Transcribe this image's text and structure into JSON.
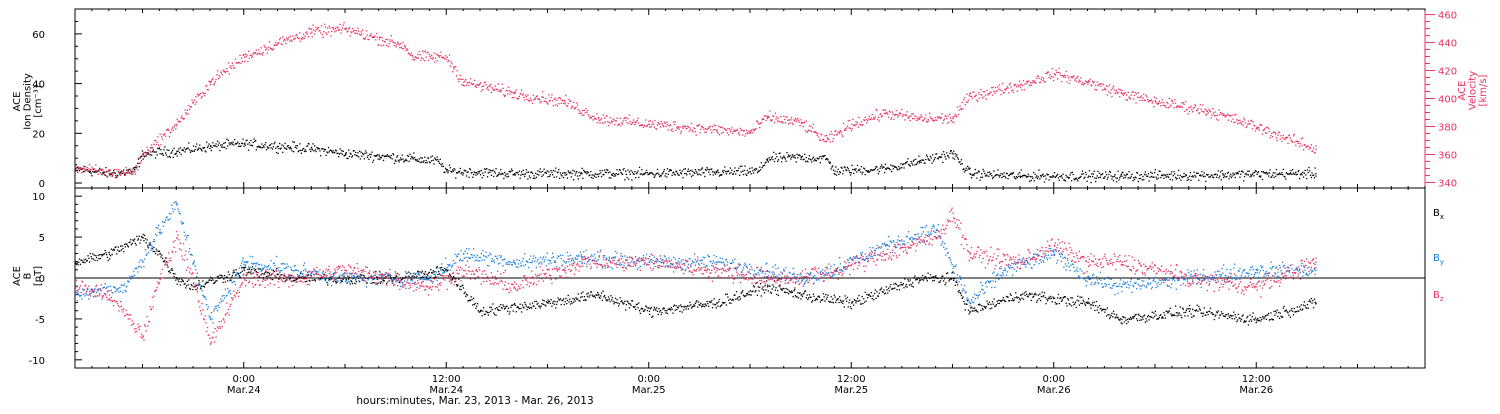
{
  "colors": {
    "black": "#000000",
    "red": "#e8315f",
    "blue": "#1a7fe0"
  },
  "time_axis": {
    "start": "2013-03-23 14:00",
    "end": "2013-03-26 22:00",
    "major_ticks": [
      {
        "time": "2013-03-24 00:00",
        "label": "0:00",
        "sub": "Mar.24"
      },
      {
        "time": "2013-03-24 12:00",
        "label": "12:00",
        "sub": "Mar.24"
      },
      {
        "time": "2013-03-25 00:00",
        "label": "0:00",
        "sub": "Mar.25"
      },
      {
        "time": "2013-03-25 12:00",
        "label": "12:00",
        "sub": "Mar.25"
      },
      {
        "time": "2013-03-26 00:00",
        "label": "0:00",
        "sub": "Mar.26"
      },
      {
        "time": "2013-03-26 12:00",
        "label": "12:00",
        "sub": "Mar.26"
      }
    ],
    "title": "hours:minutes, Mar. 23, 2013 - Mar. 26, 2013"
  },
  "chart_data": [
    {
      "type": "scatter",
      "ylabel_left": [
        "ACE",
        "Ion Density",
        "[cm⁻³]"
      ],
      "ylabel_right": [
        "ACE",
        "Velocity",
        "[km/s]"
      ],
      "ylim_left": [
        -2,
        70
      ],
      "ylim_right": [
        336,
        464
      ],
      "left_ticks": [
        0,
        20,
        40,
        60
      ],
      "right_ticks": [
        340,
        360,
        380,
        400,
        420,
        440,
        460
      ],
      "series": [
        {
          "axis": "left",
          "color": "#000000",
          "spread": 3,
          "points": [
            [
              "2013-03-23 14:00",
              6
            ],
            [
              "2013-03-23 16:00",
              4
            ],
            [
              "2013-03-23 17:30",
              5
            ],
            [
              "2013-03-23 18:00",
              12
            ],
            [
              "2013-03-23 20:00",
              13
            ],
            [
              "2013-03-23 22:00",
              15
            ],
            [
              "2013-03-24 00:00",
              16
            ],
            [
              "2013-03-24 02:00",
              15
            ],
            [
              "2013-03-24 04:00",
              14
            ],
            [
              "2013-03-24 06:00",
              12
            ],
            [
              "2013-03-24 08:00",
              11
            ],
            [
              "2013-03-24 10:00",
              10
            ],
            [
              "2013-03-24 11:30",
              9
            ],
            [
              "2013-03-24 12:00",
              5
            ],
            [
              "2013-03-24 16:00",
              4
            ],
            [
              "2013-03-24 20:00",
              4
            ],
            [
              "2013-03-25 00:00",
              4
            ],
            [
              "2013-03-25 04:00",
              4.5
            ],
            [
              "2013-03-25 06:30",
              5
            ],
            [
              "2013-03-25 07:00",
              10
            ],
            [
              "2013-03-25 09:00",
              10.5
            ],
            [
              "2013-03-25 10:30",
              10
            ],
            [
              "2013-03-25 11:00",
              5
            ],
            [
              "2013-03-25 14:00",
              6
            ],
            [
              "2013-03-25 16:00",
              9
            ],
            [
              "2013-03-25 18:00",
              12
            ],
            [
              "2013-03-25 19:00",
              4
            ],
            [
              "2013-03-25 22:00",
              3
            ],
            [
              "2013-03-26 04:00",
              3
            ],
            [
              "2013-03-26 10:00",
              3.5
            ],
            [
              "2013-03-26 14:00",
              4
            ],
            [
              "2013-03-26 15:30",
              4
            ]
          ]
        },
        {
          "axis": "right",
          "color": "#e8315f",
          "spread": 6,
          "points": [
            [
              "2013-03-23 14:00",
              351
            ],
            [
              "2013-03-23 16:00",
              347
            ],
            [
              "2013-03-23 17:30",
              348
            ],
            [
              "2013-03-23 18:00",
              360
            ],
            [
              "2013-03-23 20:00",
              382
            ],
            [
              "2013-03-23 22:00",
              412
            ],
            [
              "2013-03-24 00:00",
              430
            ],
            [
              "2013-03-24 02:00",
              440
            ],
            [
              "2013-03-24 04:00",
              448
            ],
            [
              "2013-03-24 06:00",
              450
            ],
            [
              "2013-03-24 08:00",
              443
            ],
            [
              "2013-03-24 09:30",
              438
            ],
            [
              "2013-03-24 10:00",
              430
            ],
            [
              "2013-03-24 12:00",
              430
            ],
            [
              "2013-03-24 13:00",
              412
            ],
            [
              "2013-03-24 16:00",
              404
            ],
            [
              "2013-03-24 19:00",
              398
            ],
            [
              "2013-03-24 21:00",
              386
            ],
            [
              "2013-03-25 00:00",
              382
            ],
            [
              "2013-03-25 04:00",
              378
            ],
            [
              "2013-03-25 06:00",
              376
            ],
            [
              "2013-03-25 07:00",
              387
            ],
            [
              "2013-03-25 09:00",
              383
            ],
            [
              "2013-03-25 10:30",
              370
            ],
            [
              "2013-03-25 12:00",
              382
            ],
            [
              "2013-03-25 14:00",
              390
            ],
            [
              "2013-03-25 16:00",
              386
            ],
            [
              "2013-03-25 18:00",
              386
            ],
            [
              "2013-03-25 19:00",
              402
            ],
            [
              "2013-03-25 22:00",
              410
            ],
            [
              "2013-03-26 00:00",
              418
            ],
            [
              "2013-03-26 02:00",
              412
            ],
            [
              "2013-03-26 04:00",
              404
            ],
            [
              "2013-03-26 06:00",
              398
            ],
            [
              "2013-03-26 09:00",
              392
            ],
            [
              "2013-03-26 12:00",
              380
            ],
            [
              "2013-03-26 15:30",
              364
            ]
          ]
        }
      ]
    },
    {
      "type": "scatter",
      "ylabel_left": [
        "ACE",
        "B",
        "[nT]"
      ],
      "ylim": [
        -11,
        11
      ],
      "ticks": [
        -10,
        -5,
        0,
        5,
        10
      ],
      "series": [
        {
          "name": "B",
          "subscript": "x",
          "color": "#000000",
          "spread": 1.0,
          "points": [
            [
              "2013-03-23 14:00",
              2
            ],
            [
              "2013-03-23 16:00",
              3
            ],
            [
              "2013-03-23 18:00",
              5
            ],
            [
              "2013-03-23 19:00",
              3
            ],
            [
              "2013-03-23 20:00",
              0
            ],
            [
              "2013-03-23 21:00",
              -1
            ],
            [
              "2013-03-24 00:00",
              1
            ],
            [
              "2013-03-24 03:00",
              0
            ],
            [
              "2013-03-24 06:00",
              0
            ],
            [
              "2013-03-24 09:00",
              0
            ],
            [
              "2013-03-24 12:00",
              1
            ],
            [
              "2013-03-24 14:00",
              -4
            ],
            [
              "2013-03-24 18:00",
              -3
            ],
            [
              "2013-03-24 21:00",
              -2
            ],
            [
              "2013-03-25 00:00",
              -4
            ],
            [
              "2013-03-25 04:00",
              -3
            ],
            [
              "2013-03-25 07:00",
              -1
            ],
            [
              "2013-03-25 09:00",
              -2
            ],
            [
              "2013-03-25 12:00",
              -3
            ],
            [
              "2013-03-25 16:00",
              0
            ],
            [
              "2013-03-25 18:00",
              0
            ],
            [
              "2013-03-25 19:00",
              -4
            ],
            [
              "2013-03-25 22:00",
              -2
            ],
            [
              "2013-03-26 02:00",
              -3
            ],
            [
              "2013-03-26 04:00",
              -5
            ],
            [
              "2013-03-26 08:00",
              -4
            ],
            [
              "2013-03-26 12:00",
              -5
            ],
            [
              "2013-03-26 15:30",
              -3
            ]
          ]
        },
        {
          "name": "B",
          "subscript": "y",
          "color": "#1a7fe0",
          "spread": 1.4,
          "points": [
            [
              "2013-03-23 14:00",
              -2
            ],
            [
              "2013-03-23 17:00",
              -1
            ],
            [
              "2013-03-23 19:00",
              6
            ],
            [
              "2013-03-23 20:00",
              9
            ],
            [
              "2013-03-23 21:00",
              2
            ],
            [
              "2013-03-23 22:00",
              -5
            ],
            [
              "2013-03-24 00:00",
              2
            ],
            [
              "2013-03-24 03:00",
              1
            ],
            [
              "2013-03-24 06:00",
              0
            ],
            [
              "2013-03-24 09:00",
              0
            ],
            [
              "2013-03-24 11:00",
              0
            ],
            [
              "2013-03-24 13:00",
              3
            ],
            [
              "2013-03-24 16:00",
              2
            ],
            [
              "2013-03-24 20:00",
              2.5
            ],
            [
              "2013-03-25 00:00",
              2
            ],
            [
              "2013-03-25 04:00",
              2
            ],
            [
              "2013-03-25 07:00",
              1
            ],
            [
              "2013-03-25 09:00",
              0
            ],
            [
              "2013-03-25 11:00",
              1
            ],
            [
              "2013-03-25 14:00",
              4
            ],
            [
              "2013-03-25 17:00",
              6
            ],
            [
              "2013-03-25 19:00",
              -3
            ],
            [
              "2013-03-25 21:00",
              1
            ],
            [
              "2013-03-26 00:00",
              3
            ],
            [
              "2013-03-26 02:00",
              0
            ],
            [
              "2013-03-26 04:00",
              -1
            ],
            [
              "2013-03-26 08:00",
              0
            ],
            [
              "2013-03-26 12:00",
              1
            ],
            [
              "2013-03-26 15:30",
              1
            ]
          ]
        },
        {
          "name": "B",
          "subscript": "z",
          "color": "#e8315f",
          "spread": 1.6,
          "points": [
            [
              "2013-03-23 14:00",
              -1
            ],
            [
              "2013-03-23 16:00",
              -2
            ],
            [
              "2013-03-23 18:00",
              -7
            ],
            [
              "2013-03-23 19:00",
              0
            ],
            [
              "2013-03-23 20:00",
              5
            ],
            [
              "2013-03-23 21:00",
              0
            ],
            [
              "2013-03-23 22:00",
              -8
            ],
            [
              "2013-03-24 00:00",
              0
            ],
            [
              "2013-03-24 03:00",
              0
            ],
            [
              "2013-03-24 06:00",
              1
            ],
            [
              "2013-03-24 09:00",
              0
            ],
            [
              "2013-03-24 11:00",
              -1
            ],
            [
              "2013-03-24 13:00",
              1
            ],
            [
              "2013-03-24 16:00",
              -1
            ],
            [
              "2013-03-24 20:00",
              2
            ],
            [
              "2013-03-25 00:00",
              2
            ],
            [
              "2013-03-25 04:00",
              1
            ],
            [
              "2013-03-25 07:00",
              0
            ],
            [
              "2013-03-25 09:00",
              0
            ],
            [
              "2013-03-25 11:00",
              1
            ],
            [
              "2013-03-25 14:00",
              3
            ],
            [
              "2013-03-25 17:00",
              5
            ],
            [
              "2013-03-25 18:00",
              8
            ],
            [
              "2013-03-25 19:00",
              3
            ],
            [
              "2013-03-25 22:00",
              2
            ],
            [
              "2013-03-26 00:00",
              4
            ],
            [
              "2013-03-26 02:00",
              2
            ],
            [
              "2013-03-26 04:00",
              2
            ],
            [
              "2013-03-26 08:00",
              0
            ],
            [
              "2013-03-26 12:00",
              -1
            ],
            [
              "2013-03-26 15:30",
              2
            ]
          ]
        }
      ]
    }
  ]
}
